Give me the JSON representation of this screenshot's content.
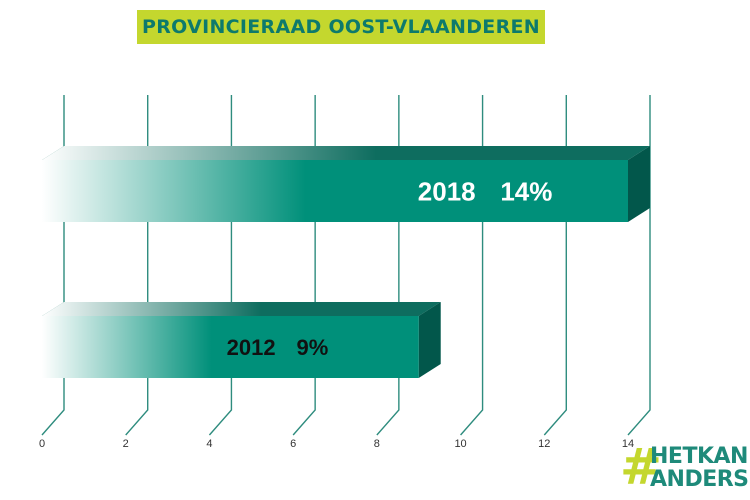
{
  "title": "PROVINCIERAAD OOST-VLAANDEREN",
  "chart_data": {
    "type": "bar",
    "orientation": "horizontal",
    "categories": [
      "2018",
      "2012"
    ],
    "values": [
      14,
      9
    ],
    "value_labels": [
      "14%",
      "9%"
    ],
    "xlim": [
      0,
      14
    ],
    "x_ticks": [
      0,
      2,
      4,
      6,
      8,
      10,
      12,
      14
    ],
    "grid": true,
    "bar_color": "#00907a",
    "bar_top_color": "#0e6d5f",
    "bar_side_color": "#02574b",
    "grid_color": "#2e8c7e",
    "title_bg_color": "#c4d72e"
  },
  "logo": {
    "line1": "HETKAN",
    "line2": "ANDERS",
    "hash_color": "#c4d72e",
    "text_color": "#1e8a7a"
  }
}
